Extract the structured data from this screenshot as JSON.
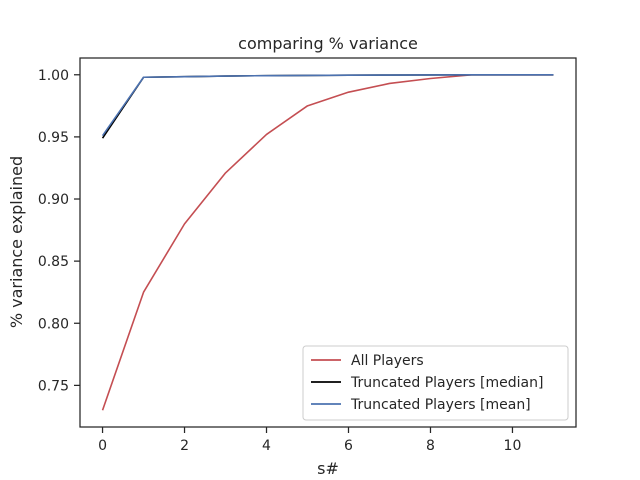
{
  "chart_data": {
    "type": "line",
    "title": "comparing % variance",
    "xlabel": "s#",
    "ylabel": "% variance explained",
    "xlim": [
      -0.55,
      11.55
    ],
    "ylim": [
      0.7165,
      1.0135
    ],
    "xticks": [
      0,
      2,
      4,
      6,
      8,
      10
    ],
    "xtick_labels": [
      "0",
      "2",
      "4",
      "6",
      "8",
      "10"
    ],
    "yticks": [
      0.75,
      0.8,
      0.85,
      0.9,
      0.95,
      1.0
    ],
    "ytick_labels": [
      "0.75",
      "0.80",
      "0.85",
      "0.90",
      "0.95",
      "1.00"
    ],
    "grid": false,
    "legend_position": "lower-right",
    "x": [
      0,
      1,
      2,
      3,
      4,
      5,
      6,
      7,
      8,
      9,
      10,
      11
    ],
    "series": [
      {
        "name": "All Players",
        "color": "#c44e52",
        "values": [
          0.73,
          0.825,
          0.88,
          0.921,
          0.952,
          0.975,
          0.986,
          0.993,
          0.997,
          1.0,
          1.0,
          1.0
        ]
      },
      {
        "name": "Truncated Players [median]",
        "color": "#000000",
        "values": [
          0.949,
          0.998,
          0.9985,
          0.999,
          0.9993,
          0.9995,
          0.9997,
          0.9998,
          0.9999,
          1.0,
          1.0,
          1.0
        ]
      },
      {
        "name": "Truncated Players [mean]",
        "color": "#4c72b0",
        "values": [
          0.951,
          0.998,
          0.9985,
          0.999,
          0.9993,
          0.9995,
          0.9997,
          0.9998,
          0.9999,
          1.0,
          1.0,
          1.0
        ]
      }
    ]
  }
}
